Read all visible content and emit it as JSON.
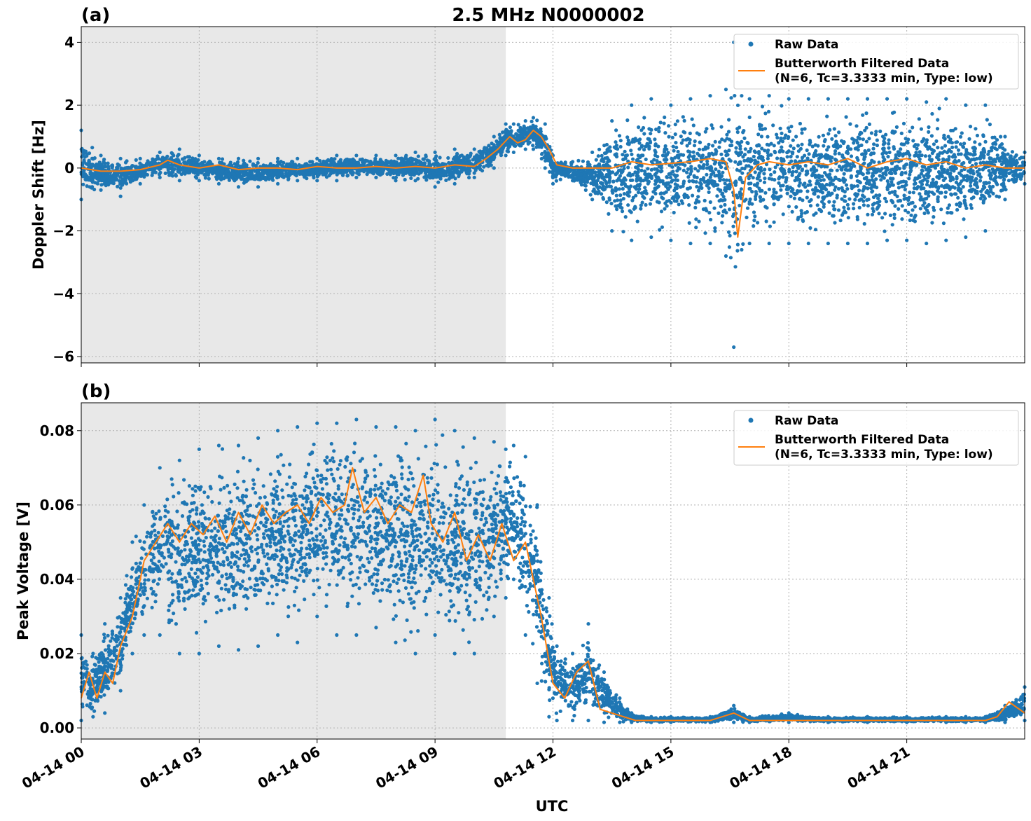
{
  "title": "2.5 MHz N0000002",
  "xlabel": "UTC",
  "x_tick_labels": [
    "04-14 00",
    "04-14 03",
    "04-14 06",
    "04-14 09",
    "04-14 12",
    "04-14 15",
    "04-14 18",
    "04-14 21"
  ],
  "legend": {
    "raw_label": "Raw Data",
    "filtered_label_line1": "Butterworth Filtered Data",
    "filtered_label_line2": "(N=6, Tc=3.3333 min, Type: low)"
  },
  "colors": {
    "raw": "#1f77b4",
    "filtered": "#ff7f0e",
    "shade": "#e8e8e8",
    "grid": "#b0b0b0"
  },
  "chart_data": [
    {
      "type": "scatter",
      "panel_label": "(a)",
      "ylabel": "Doppler Shift [Hz]",
      "xlim_hours": [
        0,
        24
      ],
      "ylim": [
        -6.2,
        4.5
      ],
      "y_ticks": [
        4,
        2,
        0,
        -2,
        -4,
        -6
      ],
      "y_tick_labels": [
        "4",
        "2",
        "0",
        "−2",
        "−4",
        "−6"
      ],
      "shaded_hours": [
        0,
        10.8
      ],
      "grid": true,
      "legend_position": "top-right",
      "series": [
        {
          "name": "Raw Data",
          "style": "points",
          "hours": [
            0,
            0.5,
            1,
            1.5,
            2,
            2.5,
            3,
            3.5,
            4,
            4.5,
            5,
            5.5,
            6,
            6.5,
            7,
            7.5,
            8,
            8.5,
            9,
            9.5,
            10,
            10.5,
            10.8,
            11,
            11.3,
            11.5,
            11.8,
            12,
            12.5,
            13,
            13.5,
            14,
            14.5,
            15,
            15.5,
            16,
            16.4,
            16.6,
            16.8,
            17,
            17.5,
            18,
            18.5,
            19,
            19.5,
            20,
            20.5,
            21,
            21.5,
            22,
            22.5,
            23,
            23.5,
            24
          ],
          "upper": [
            1.2,
            0.4,
            0.3,
            0.3,
            0.5,
            0.6,
            0.4,
            0.3,
            0.3,
            0.3,
            0.3,
            0.3,
            0.3,
            0.4,
            0.4,
            0.4,
            0.4,
            0.5,
            0.5,
            0.6,
            0.6,
            1.0,
            1.4,
            1.4,
            1.5,
            1.6,
            1.4,
            0.4,
            0.2,
            0.5,
            1.5,
            2.0,
            2.2,
            2.0,
            2.2,
            2.3,
            2.5,
            4.0,
            2.3,
            2.2,
            2.3,
            2.2,
            2.2,
            2.2,
            2.2,
            2.2,
            2.2,
            2.2,
            2.1,
            2.2,
            2.0,
            2.0,
            1.0,
            0.5
          ],
          "lower": [
            -1.0,
            -0.7,
            -0.9,
            -0.5,
            -0.3,
            -0.4,
            -0.4,
            -0.5,
            -0.6,
            -0.6,
            -0.5,
            -0.4,
            -0.4,
            -0.4,
            -0.3,
            -0.3,
            -0.4,
            -0.4,
            -0.6,
            -0.5,
            -0.3,
            0.0,
            0.4,
            0.5,
            0.6,
            0.6,
            0.0,
            -0.5,
            -0.4,
            -1.0,
            -2.0,
            -2.3,
            -2.2,
            -2.3,
            -2.4,
            -2.4,
            -2.8,
            -5.7,
            -2.6,
            -2.4,
            -2.4,
            -2.4,
            -2.4,
            -2.4,
            -2.4,
            -2.4,
            -2.3,
            -2.3,
            -2.4,
            -2.3,
            -2.2,
            -2.0,
            -1.0,
            -0.5
          ]
        },
        {
          "name": "Butterworth Filtered Data (N=6, Tc=3.3333 min, Type: low)",
          "style": "line",
          "hours": [
            0,
            0.5,
            1,
            1.5,
            2,
            2.2,
            2.5,
            3,
            3.5,
            4,
            4.5,
            5,
            5.5,
            6,
            6.5,
            7,
            7.5,
            8,
            8.5,
            9,
            9.5,
            10,
            10.3,
            10.6,
            10.9,
            11.1,
            11.3,
            11.5,
            11.7,
            11.9,
            12.1,
            12.5,
            13,
            13.5,
            14,
            14.5,
            15,
            15.5,
            16,
            16.4,
            16.6,
            16.7,
            16.9,
            17.2,
            17.5,
            18,
            18.5,
            19,
            19.5,
            20,
            20.5,
            21,
            21.5,
            22,
            22.5,
            23,
            23.5,
            24
          ],
          "values": [
            0.0,
            -0.1,
            -0.1,
            -0.05,
            0.1,
            0.25,
            0.1,
            0.0,
            0.1,
            -0.05,
            0.0,
            0.0,
            -0.05,
            0.05,
            0.0,
            0.0,
            0.05,
            0.0,
            0.05,
            0.0,
            0.1,
            0.05,
            0.3,
            0.6,
            1.0,
            0.8,
            0.9,
            1.2,
            1.0,
            0.6,
            0.1,
            0.0,
            0.0,
            0.0,
            0.2,
            0.1,
            0.15,
            0.2,
            0.3,
            0.2,
            -0.7,
            -2.2,
            -0.3,
            0.1,
            0.2,
            0.1,
            0.2,
            0.1,
            0.3,
            0.0,
            0.2,
            0.3,
            0.1,
            0.2,
            0.0,
            0.1,
            0.0,
            0.0
          ]
        }
      ]
    },
    {
      "type": "scatter",
      "panel_label": "(b)",
      "ylabel": "Peak Voltage [V]",
      "xlim_hours": [
        0,
        24
      ],
      "ylim": [
        -0.003,
        0.0875
      ],
      "y_ticks": [
        0.0,
        0.02,
        0.04,
        0.06,
        0.08
      ],
      "y_tick_labels": [
        "0.00",
        "0.02",
        "0.04",
        "0.06",
        "0.08"
      ],
      "shaded_hours": [
        0,
        10.8
      ],
      "grid": true,
      "legend_position": "top-right",
      "series": [
        {
          "name": "Raw Data",
          "style": "points",
          "hours": [
            0,
            0.3,
            0.6,
            1,
            1.3,
            1.6,
            2,
            2.5,
            3,
            3.5,
            4,
            4.5,
            5,
            5.5,
            6,
            6.5,
            7,
            7.5,
            8,
            8.5,
            9,
            9.5,
            10,
            10.5,
            10.8,
            11,
            11.3,
            11.6,
            11.9,
            12.1,
            12.5,
            12.9,
            13.3,
            13.7,
            14,
            14.5,
            15,
            16,
            16.6,
            17,
            18,
            19,
            20,
            21,
            22,
            22.5,
            23,
            23.5,
            24
          ],
          "upper": [
            0.025,
            0.02,
            0.028,
            0.035,
            0.05,
            0.06,
            0.07,
            0.072,
            0.075,
            0.076,
            0.076,
            0.078,
            0.08,
            0.081,
            0.082,
            0.082,
            0.083,
            0.081,
            0.081,
            0.08,
            0.083,
            0.08,
            0.078,
            0.077,
            0.075,
            0.076,
            0.073,
            0.06,
            0.035,
            0.022,
            0.02,
            0.028,
            0.015,
            0.008,
            0.004,
            0.003,
            0.003,
            0.003,
            0.006,
            0.003,
            0.004,
            0.003,
            0.003,
            0.003,
            0.003,
            0.003,
            0.003,
            0.006,
            0.011
          ],
          "lower": [
            0.002,
            0.003,
            0.004,
            0.01,
            0.02,
            0.025,
            0.025,
            0.02,
            0.02,
            0.022,
            0.021,
            0.022,
            0.025,
            0.023,
            0.03,
            0.025,
            0.025,
            0.027,
            0.023,
            0.02,
            0.025,
            0.02,
            0.02,
            0.03,
            0.035,
            0.04,
            0.025,
            0.012,
            0.003,
            0.002,
            0.002,
            0.002,
            0.0015,
            0.0015,
            0.0015,
            0.0015,
            0.0015,
            0.0015,
            0.0015,
            0.0015,
            0.0015,
            0.0015,
            0.0015,
            0.0015,
            0.0015,
            0.0015,
            0.0015,
            0.0015,
            0.002
          ]
        },
        {
          "name": "Butterworth Filtered Data (N=6, Tc=3.3333 min, Type: low)",
          "style": "line",
          "hours": [
            0,
            0.2,
            0.4,
            0.6,
            0.8,
            1,
            1.3,
            1.6,
            1.9,
            2.2,
            2.5,
            2.8,
            3.1,
            3.4,
            3.7,
            4,
            4.3,
            4.6,
            4.9,
            5.2,
            5.5,
            5.8,
            6.1,
            6.4,
            6.7,
            6.9,
            7.2,
            7.5,
            7.8,
            8.1,
            8.4,
            8.7,
            8.9,
            9.2,
            9.5,
            9.8,
            10.1,
            10.4,
            10.7,
            11,
            11.3,
            11.5,
            11.7,
            12,
            12.3,
            12.6,
            12.9,
            13.2,
            13.5,
            13.8,
            14.1,
            14.5,
            15,
            16,
            16.6,
            17,
            18,
            19,
            20,
            21,
            22,
            22.5,
            23,
            23.3,
            23.6,
            24
          ],
          "values": [
            0.008,
            0.015,
            0.008,
            0.015,
            0.012,
            0.022,
            0.03,
            0.045,
            0.05,
            0.055,
            0.05,
            0.055,
            0.052,
            0.057,
            0.05,
            0.058,
            0.052,
            0.06,
            0.055,
            0.058,
            0.06,
            0.055,
            0.062,
            0.058,
            0.06,
            0.07,
            0.058,
            0.062,
            0.055,
            0.06,
            0.058,
            0.068,
            0.055,
            0.05,
            0.058,
            0.045,
            0.052,
            0.045,
            0.055,
            0.045,
            0.05,
            0.04,
            0.03,
            0.012,
            0.008,
            0.015,
            0.018,
            0.005,
            0.004,
            0.003,
            0.002,
            0.002,
            0.002,
            0.002,
            0.004,
            0.002,
            0.002,
            0.002,
            0.002,
            0.002,
            0.002,
            0.002,
            0.002,
            0.003,
            0.007,
            0.004
          ]
        }
      ]
    }
  ]
}
